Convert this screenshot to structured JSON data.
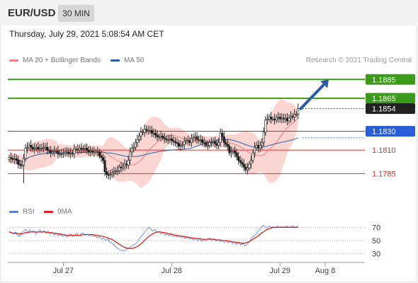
{
  "header": {
    "symbol": "EUR/USD",
    "timeframe": "30 MIN"
  },
  "timestamp": "Thursday, July 29, 2021 5:08:54 AM CET",
  "legend": {
    "ma20": {
      "label": "MA 20 + Bollinger Bands",
      "color": "#f08080"
    },
    "ma50": {
      "label": "MA 50",
      "color": "#2d5fa8"
    }
  },
  "copyright": "Research © 2021 Trading Central",
  "rsi_legend": {
    "rsi": {
      "label": "RSI",
      "color": "#5b7fd6"
    },
    "ma9": {
      "label": "9MA",
      "color": "#e02020"
    }
  },
  "chart_data": [
    {
      "type": "candlestick",
      "price_range": [
        1.1768,
        1.1898
      ],
      "x_range": [
        0,
        197
      ],
      "x_ticks": [
        {
          "label": "Jul 27",
          "x": 30
        },
        {
          "label": "Jul 28",
          "x": 90
        },
        {
          "label": "Jul 29",
          "x": 150
        },
        {
          "label": "Aug 8",
          "x": 175
        }
      ],
      "levels": [
        {
          "value": 1.1885,
          "label": "1.1885",
          "kind": "resistance",
          "color": "#3c9a1c"
        },
        {
          "value": 1.1865,
          "label": "1.1865",
          "kind": "resistance",
          "color": "#3c9a1c"
        },
        {
          "value": 1.1854,
          "label": "1.1854",
          "kind": "last-price",
          "color": "#222222"
        },
        {
          "value": 1.183,
          "label": "1.1830",
          "kind": "pivot",
          "color": "#2a5ed8"
        },
        {
          "value": 1.181,
          "label": "1.1810",
          "kind": "support",
          "color": "#e03030"
        },
        {
          "value": 1.1785,
          "label": "1.1785",
          "kind": "support",
          "color": "#e03030"
        }
      ],
      "projection_arrow": {
        "from": [
          161,
          1.1853
        ],
        "to": [
          177,
          1.1885
        ],
        "color": "#2a5aa8"
      },
      "close": [
        1.1802,
        1.1801,
        1.18,
        1.1801,
        1.1799,
        1.1795,
        1.1794,
        1.1794,
        1.1801,
        1.1812,
        1.1813,
        1.1815,
        1.1813,
        1.1811,
        1.1812,
        1.1813,
        1.1811,
        1.1812,
        1.1812,
        1.1813,
        1.1813,
        1.181,
        1.1809,
        1.1807,
        1.1808,
        1.1809,
        1.1809,
        1.1806,
        1.1806,
        1.1806,
        1.1807,
        1.1808,
        1.1808,
        1.1806,
        1.1807,
        1.1806,
        1.1811,
        1.1811,
        1.181,
        1.1812,
        1.1811,
        1.1811,
        1.1812,
        1.181,
        1.1808,
        1.1809,
        1.1808,
        1.1808,
        1.1808,
        1.1808,
        1.1804,
        1.1802,
        1.1799,
        1.1787,
        1.1784,
        1.1783,
        1.1784,
        1.1786,
        1.1787,
        1.1788,
        1.1788,
        1.1792,
        1.1791,
        1.1793,
        1.1795,
        1.1794,
        1.1799,
        1.1808,
        1.1812,
        1.1813,
        1.1818,
        1.1821,
        1.1825,
        1.1829,
        1.1829,
        1.1832,
        1.1831,
        1.1831,
        1.1831,
        1.1828,
        1.1828,
        1.1826,
        1.1824,
        1.1824,
        1.1825,
        1.1823,
        1.1822,
        1.1821,
        1.1821,
        1.1822,
        1.182,
        1.1819,
        1.1818,
        1.1817,
        1.1814,
        1.1815,
        1.1816,
        1.1819,
        1.182,
        1.182,
        1.1818,
        1.1822,
        1.1823,
        1.1824,
        1.1821,
        1.1821,
        1.1821,
        1.1818,
        1.1818,
        1.1815,
        1.1815,
        1.1818,
        1.1818,
        1.1819,
        1.1817,
        1.1815,
        1.1818,
        1.1828,
        1.1824,
        1.1818,
        1.1816,
        1.1814,
        1.1807,
        1.1808,
        1.1809,
        1.1807,
        1.1803,
        1.1799,
        1.1797,
        1.1795,
        1.1792,
        1.1789,
        1.1791,
        1.1795,
        1.1799,
        1.1807,
        1.1813,
        1.1815,
        1.1812,
        1.1815,
        1.1818,
        1.1829,
        1.1842,
        1.1843,
        1.1845,
        1.1843,
        1.1843,
        1.1842,
        1.1844,
        1.1845,
        1.1843,
        1.1844,
        1.1843,
        1.1844,
        1.1841,
        1.1844,
        1.1846,
        1.1845,
        1.1848,
        1.1848,
        1.1854
      ]
    },
    {
      "type": "line",
      "title": "RSI",
      "y_range": [
        20,
        80
      ],
      "y_ticks": [
        70,
        50,
        30
      ],
      "series": [
        {
          "name": "RSI",
          "color": "#5b7fd6",
          "values": [
            64,
            62,
            60,
            63,
            58,
            56,
            62,
            64,
            67,
            62,
            66,
            63,
            65,
            60,
            63,
            66,
            62,
            65,
            61,
            64,
            60,
            62,
            58,
            61,
            57,
            60,
            56,
            58,
            55,
            57,
            60,
            56,
            58,
            61,
            57,
            59,
            62,
            58,
            60,
            57,
            59,
            56,
            58,
            54,
            56,
            52,
            54,
            50,
            52,
            48,
            46,
            44,
            40,
            38,
            36,
            35,
            34,
            36,
            38,
            40,
            42,
            44,
            46,
            50,
            55,
            58,
            62,
            66,
            70,
            68,
            64,
            67,
            62,
            64,
            60,
            62,
            58,
            60,
            57,
            59,
            56,
            58,
            55,
            57,
            54,
            56,
            53,
            55,
            52,
            54,
            51,
            53,
            50,
            52,
            49,
            51,
            50,
            52,
            54,
            50,
            53,
            49,
            52,
            48,
            51,
            47,
            50,
            46,
            49,
            45,
            48,
            44,
            47,
            43,
            46,
            42,
            44,
            48,
            52,
            56,
            58,
            62,
            66,
            70,
            73,
            71,
            69,
            72,
            70,
            71,
            69,
            72,
            70,
            71,
            70,
            72,
            71,
            70,
            72,
            71,
            70,
            72
          ]
        },
        {
          "name": "9MA",
          "color": "#e02020",
          "values": [
            63,
            62,
            61,
            61,
            61,
            60,
            60,
            61,
            62,
            62,
            63,
            63,
            63,
            63,
            63,
            63,
            63,
            63,
            63,
            62,
            62,
            62,
            61,
            61,
            60,
            60,
            59,
            59,
            58,
            58,
            58,
            58,
            58,
            58,
            58,
            58,
            59,
            59,
            59,
            59,
            59,
            59,
            58,
            58,
            57,
            57,
            56,
            55,
            54,
            53,
            52,
            50,
            48,
            46,
            44,
            42,
            40,
            39,
            38,
            38,
            38,
            39,
            40,
            42,
            44,
            47,
            50,
            53,
            56,
            58,
            60,
            62,
            63,
            63,
            63,
            62,
            62,
            61,
            60,
            60,
            59,
            58,
            58,
            57,
            57,
            56,
            56,
            55,
            55,
            54,
            54,
            53,
            53,
            53,
            52,
            52,
            52,
            52,
            52,
            52,
            52,
            51,
            51,
            51,
            50,
            50,
            50,
            49,
            49,
            48,
            48,
            47,
            47,
            46,
            46,
            46,
            47,
            48,
            50,
            52,
            54,
            56,
            58,
            61,
            63,
            65,
            67,
            68,
            69,
            70,
            70,
            70,
            70,
            70,
            70,
            70,
            70,
            70,
            70,
            70,
            70,
            70
          ]
        }
      ]
    }
  ]
}
